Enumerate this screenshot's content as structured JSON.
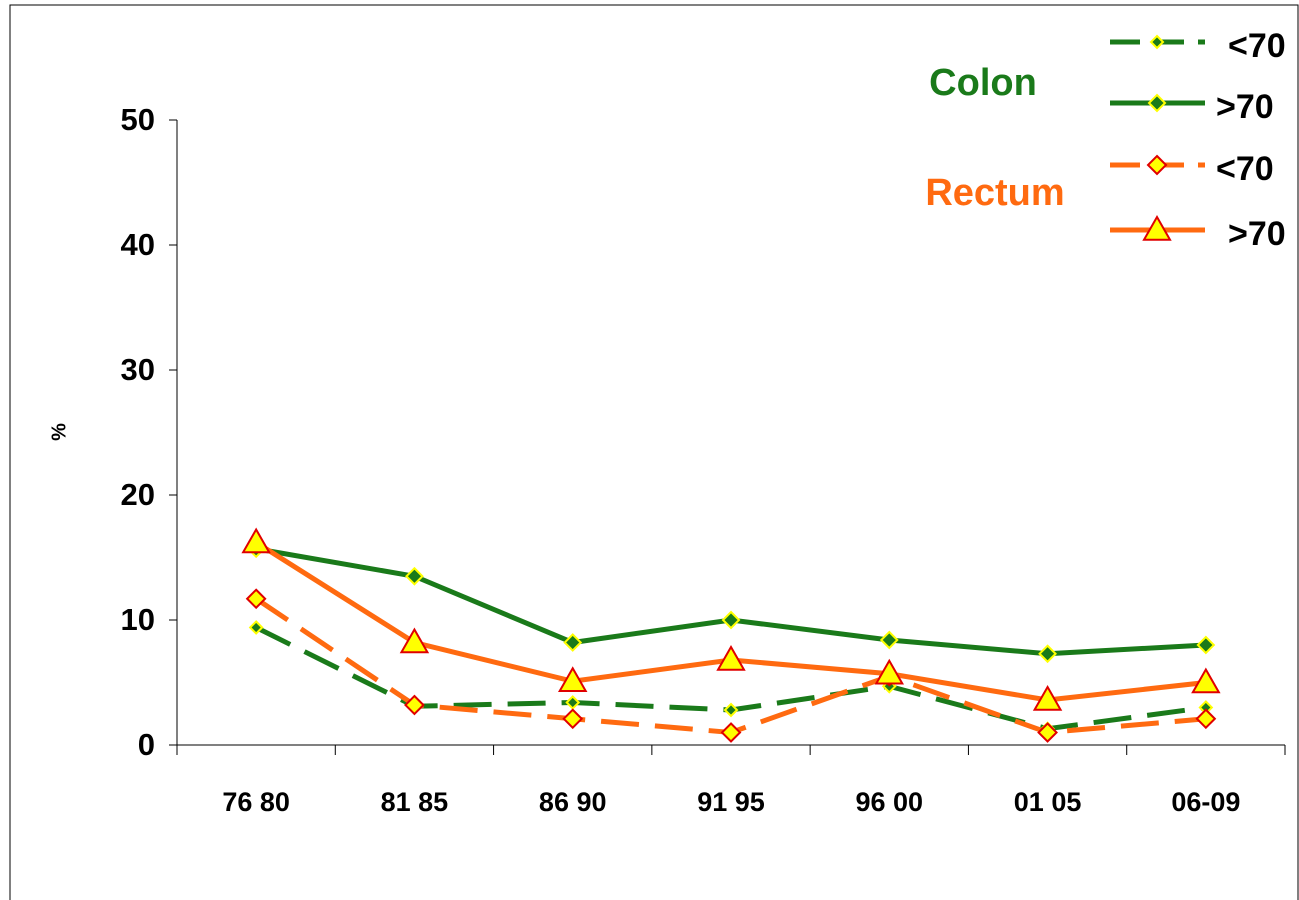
{
  "chart_data": {
    "type": "line",
    "y_label": "%",
    "annotations": [
      "Colon",
      "Rectum"
    ],
    "categories": [
      "76 80",
      "81 85",
      "86 90",
      "91 95",
      "96 00",
      "01 05",
      "06-09"
    ],
    "ylim": [
      0,
      50
    ],
    "yticks": [
      0,
      10,
      20,
      30,
      40,
      50
    ],
    "series": [
      {
        "name": "<70",
        "color": "#1a7a1a",
        "dash": true,
        "marker": "diamond",
        "marker_fill": "#1a7a1a",
        "marker_stroke": "#ffff00",
        "marker_size": 6,
        "values": [
          9.4,
          3.1,
          3.4,
          2.8,
          4.7,
          1.3,
          3.0
        ]
      },
      {
        "name": ">70",
        "color": "#1a7a1a",
        "dash": false,
        "marker": "diamond",
        "marker_fill": "#1a7a1a",
        "marker_stroke": "#ffff00",
        "marker_size": 8,
        "values": [
          15.7,
          13.5,
          8.2,
          10.0,
          8.4,
          7.3,
          8.0
        ]
      },
      {
        "name": "<70",
        "color": "#ff6a10",
        "dash": true,
        "marker": "diamond",
        "marker_fill": "#ffff00",
        "marker_stroke": "#e00000",
        "marker_size": 9,
        "values": [
          11.7,
          3.2,
          2.1,
          1.0,
          5.5,
          1.0,
          2.1
        ]
      },
      {
        "name": ">70",
        "color": "#ff6a10",
        "dash": false,
        "marker": "triangle",
        "marker_fill": "#ffff00",
        "marker_stroke": "#e00000",
        "marker_size": 13,
        "values": [
          16.2,
          8.2,
          5.1,
          6.8,
          5.7,
          3.6,
          5.0
        ]
      }
    ]
  }
}
